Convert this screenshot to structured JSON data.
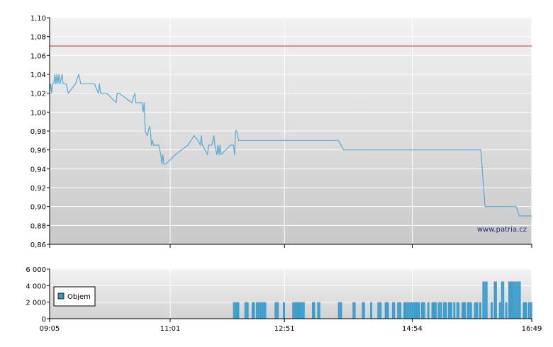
{
  "watermark": "www.patria.cz",
  "colors": {
    "line": "#5aa9d1",
    "bar": "#3a9ccd",
    "reference_line": "#c0392b",
    "grid": "#ffffff",
    "axis": "#000000"
  },
  "chart_data": [
    {
      "type": "line",
      "title": "",
      "xlabel": "",
      "ylabel": "",
      "ylim": [
        0.86,
        1.1
      ],
      "yticks": [
        "1,10",
        "1,08",
        "1,06",
        "1,04",
        "1,02",
        "1,00",
        "0,98",
        "0,96",
        "0,94",
        "0,92",
        "0,90",
        "0,88",
        "0,86"
      ],
      "x_range": [
        "09:05",
        "16:49"
      ],
      "reference_line": {
        "value": 1.07
      },
      "grid": true,
      "series": [
        {
          "name": "",
          "points": [
            [
              "09:05",
              1.02
            ],
            [
              "09:06",
              1.03
            ],
            [
              "09:07",
              1.02
            ],
            [
              "09:08",
              1.03
            ],
            [
              "09:09",
              1.03
            ],
            [
              "09:10",
              1.04
            ],
            [
              "09:11",
              1.03
            ],
            [
              "09:12",
              1.04
            ],
            [
              "09:13",
              1.03
            ],
            [
              "09:14",
              1.04
            ],
            [
              "09:15",
              1.03
            ],
            [
              "09:17",
              1.04
            ],
            [
              "09:18",
              1.03
            ],
            [
              "09:21",
              1.03
            ],
            [
              "09:23",
              1.02
            ],
            [
              "09:30",
              1.03
            ],
            [
              "09:33",
              1.04
            ],
            [
              "09:35",
              1.03
            ],
            [
              "09:48",
              1.03
            ],
            [
              "09:52",
              1.02
            ],
            [
              "09:53",
              1.03
            ],
            [
              "09:54",
              1.02
            ],
            [
              "10:00",
              1.02
            ],
            [
              "10:09",
              1.01
            ],
            [
              "10:10",
              1.02
            ],
            [
              "10:12",
              1.02
            ],
            [
              "10:24",
              1.01
            ],
            [
              "10:27",
              1.02
            ],
            [
              "10:28",
              1.01
            ],
            [
              "10:34",
              1.01
            ],
            [
              "10:35",
              1.0
            ],
            [
              "10:36",
              1.01
            ],
            [
              "10:37",
              0.98
            ],
            [
              "10:39",
              0.975
            ],
            [
              "10:41",
              0.985
            ],
            [
              "10:42",
              0.98
            ],
            [
              "10:43",
              0.965
            ],
            [
              "10:44",
              0.97
            ],
            [
              "10:45",
              0.965
            ],
            [
              "10:50",
              0.965
            ],
            [
              "10:52",
              0.955
            ],
            [
              "10:53",
              0.945
            ],
            [
              "10:54",
              0.955
            ],
            [
              "10:55",
              0.945
            ],
            [
              "10:57",
              0.945
            ],
            [
              "11:06",
              0.955
            ],
            [
              "11:18",
              0.965
            ],
            [
              "11:24",
              0.975
            ],
            [
              "11:28",
              0.97
            ],
            [
              "11:30",
              0.965
            ],
            [
              "11:31",
              0.975
            ],
            [
              "11:32",
              0.965
            ],
            [
              "11:37",
              0.955
            ],
            [
              "11:38",
              0.965
            ],
            [
              "11:41",
              0.965
            ],
            [
              "11:43",
              0.975
            ],
            [
              "11:44",
              0.965
            ],
            [
              "11:46",
              0.955
            ],
            [
              "11:47",
              0.965
            ],
            [
              "11:48",
              0.955
            ],
            [
              "11:49",
              0.965
            ],
            [
              "11:50",
              0.955
            ],
            [
              "11:59",
              0.965
            ],
            [
              "12:02",
              0.965
            ],
            [
              "12:03",
              0.955
            ],
            [
              "12:04",
              0.98
            ],
            [
              "12:05",
              0.98
            ],
            [
              "12:07",
              0.97
            ],
            [
              "13:43",
              0.97
            ],
            [
              "13:48",
              0.96
            ],
            [
              "16:00",
              0.96
            ],
            [
              "16:02",
              0.93
            ],
            [
              "16:04",
              0.9
            ],
            [
              "16:34",
              0.9
            ],
            [
              "16:37",
              0.89
            ],
            [
              "16:49",
              0.89
            ]
          ]
        }
      ]
    },
    {
      "type": "bar",
      "title": "",
      "xlabel": "",
      "ylabel": "",
      "ylim": [
        0,
        6000
      ],
      "yticks": [
        "6 000",
        "4 000",
        "2 000",
        "0"
      ],
      "xticks": [
        "09:05",
        "11:01",
        "12:51",
        "14:54",
        "16:49"
      ],
      "legend": {
        "position": "left",
        "label": "Objem"
      },
      "grid": true,
      "series": [
        {
          "name": "Objem",
          "points": [
            [
              "12:02",
              2000
            ],
            [
              "12:03",
              2000
            ],
            [
              "12:04",
              2000
            ],
            [
              "12:05",
              2000
            ],
            [
              "12:06",
              2000
            ],
            [
              "12:07",
              2000
            ],
            [
              "12:13",
              2000
            ],
            [
              "12:14",
              2000
            ],
            [
              "12:15",
              2000
            ],
            [
              "12:16",
              2000
            ],
            [
              "12:20",
              2000
            ],
            [
              "12:21",
              2000
            ],
            [
              "12:22",
              2000
            ],
            [
              "12:24",
              2000
            ],
            [
              "12:25",
              2000
            ],
            [
              "12:26",
              2000
            ],
            [
              "12:27",
              2000
            ],
            [
              "12:28",
              2000
            ],
            [
              "12:29",
              2000
            ],
            [
              "12:30",
              2000
            ],
            [
              "12:31",
              2000
            ],
            [
              "12:32",
              2000
            ],
            [
              "12:33",
              2000
            ],
            [
              "12:42",
              2000
            ],
            [
              "12:43",
              2000
            ],
            [
              "12:44",
              2000
            ],
            [
              "12:45",
              2000
            ],
            [
              "12:50",
              2000
            ],
            [
              "12:51",
              2000
            ],
            [
              "12:59",
              2000
            ],
            [
              "13:00",
              2000
            ],
            [
              "13:01",
              2000
            ],
            [
              "13:02",
              2000
            ],
            [
              "13:03",
              2000
            ],
            [
              "13:04",
              2000
            ],
            [
              "13:05",
              2000
            ],
            [
              "13:06",
              2000
            ],
            [
              "13:07",
              2000
            ],
            [
              "13:08",
              2000
            ],
            [
              "13:09",
              2000
            ],
            [
              "13:10",
              2000
            ],
            [
              "13:18",
              2000
            ],
            [
              "13:19",
              2000
            ],
            [
              "13:20",
              2000
            ],
            [
              "13:23",
              2000
            ],
            [
              "13:24",
              2000
            ],
            [
              "13:25",
              2000
            ],
            [
              "13:43",
              2000
            ],
            [
              "13:44",
              2000
            ],
            [
              "13:45",
              2000
            ],
            [
              "13:46",
              2000
            ],
            [
              "13:57",
              2000
            ],
            [
              "13:58",
              2000
            ],
            [
              "13:59",
              2000
            ],
            [
              "14:06",
              2000
            ],
            [
              "14:07",
              2000
            ],
            [
              "14:08",
              2000
            ],
            [
              "14:14",
              2000
            ],
            [
              "14:15",
              2000
            ],
            [
              "14:21",
              2000
            ],
            [
              "14:22",
              2000
            ],
            [
              "14:23",
              2000
            ],
            [
              "14:24",
              2000
            ],
            [
              "14:28",
              2000
            ],
            [
              "14:29",
              2000
            ],
            [
              "14:30",
              2000
            ],
            [
              "14:31",
              2000
            ],
            [
              "14:35",
              2000
            ],
            [
              "14:36",
              2000
            ],
            [
              "14:37",
              2000
            ],
            [
              "14:40",
              2000
            ],
            [
              "14:41",
              2000
            ],
            [
              "14:42",
              2000
            ],
            [
              "14:43",
              2000
            ],
            [
              "14:46",
              2000
            ],
            [
              "14:47",
              2000
            ],
            [
              "14:48",
              2000
            ],
            [
              "14:49",
              2000
            ],
            [
              "14:50",
              2000
            ],
            [
              "14:51",
              2000
            ],
            [
              "14:52",
              2000
            ],
            [
              "14:53",
              2000
            ],
            [
              "14:54",
              2000
            ],
            [
              "14:55",
              2000
            ],
            [
              "14:56",
              2000
            ],
            [
              "14:57",
              2000
            ],
            [
              "14:58",
              2000
            ],
            [
              "14:59",
              2000
            ],
            [
              "15:00",
              2000
            ],
            [
              "15:01",
              2000
            ],
            [
              "15:03",
              2000
            ],
            [
              "15:04",
              2000
            ],
            [
              "15:05",
              2000
            ],
            [
              "15:06",
              2000
            ],
            [
              "15:09",
              2000
            ],
            [
              "15:10",
              2000
            ],
            [
              "15:13",
              2000
            ],
            [
              "15:14",
              2000
            ],
            [
              "15:15",
              2000
            ],
            [
              "15:16",
              2000
            ],
            [
              "15:17",
              2000
            ],
            [
              "15:19",
              2000
            ],
            [
              "15:20",
              2000
            ],
            [
              "15:21",
              2000
            ],
            [
              "15:22",
              2000
            ],
            [
              "15:24",
              2000
            ],
            [
              "15:25",
              2000
            ],
            [
              "15:26",
              2000
            ],
            [
              "15:27",
              2000
            ],
            [
              "15:29",
              2000
            ],
            [
              "15:30",
              2000
            ],
            [
              "15:31",
              2000
            ],
            [
              "15:32",
              2000
            ],
            [
              "15:34",
              2000
            ],
            [
              "15:35",
              2000
            ],
            [
              "15:37",
              2000
            ],
            [
              "15:38",
              2000
            ],
            [
              "15:39",
              2000
            ],
            [
              "15:42",
              2000
            ],
            [
              "15:43",
              2000
            ],
            [
              "15:44",
              2000
            ],
            [
              "15:45",
              2000
            ],
            [
              "15:47",
              2000
            ],
            [
              "15:48",
              2000
            ],
            [
              "15:49",
              2000
            ],
            [
              "15:50",
              2000
            ],
            [
              "15:51",
              2000
            ],
            [
              "15:54",
              2000
            ],
            [
              "15:55",
              2000
            ],
            [
              "15:56",
              2000
            ],
            [
              "15:57",
              2000
            ],
            [
              "15:59",
              2000
            ],
            [
              "16:00",
              2000
            ],
            [
              "16:02",
              4500
            ],
            [
              "16:03",
              4500
            ],
            [
              "16:04",
              4500
            ],
            [
              "16:05",
              4500
            ],
            [
              "16:06",
              4500
            ],
            [
              "16:10",
              2000
            ],
            [
              "16:11",
              2000
            ],
            [
              "16:13",
              4500
            ],
            [
              "16:14",
              4500
            ],
            [
              "16:15",
              4500
            ],
            [
              "16:18",
              2000
            ],
            [
              "16:19",
              2000
            ],
            [
              "16:20",
              4500
            ],
            [
              "16:21",
              4500
            ],
            [
              "16:22",
              4500
            ],
            [
              "16:24",
              2000
            ],
            [
              "16:25",
              2000
            ],
            [
              "16:27",
              4500
            ],
            [
              "16:28",
              4500
            ],
            [
              "16:29",
              4500
            ],
            [
              "16:30",
              4500
            ],
            [
              "16:31",
              4500
            ],
            [
              "16:32",
              4500
            ],
            [
              "16:33",
              4500
            ],
            [
              "16:34",
              4500
            ],
            [
              "16:35",
              4500
            ],
            [
              "16:36",
              4500
            ],
            [
              "16:37",
              4500
            ],
            [
              "16:38",
              4500
            ],
            [
              "16:41",
              2000
            ],
            [
              "16:42",
              2000
            ],
            [
              "16:43",
              2000
            ],
            [
              "16:44",
              2000
            ],
            [
              "16:46",
              2000
            ],
            [
              "16:47",
              2000
            ],
            [
              "16:48",
              2000
            ],
            [
              "16:49",
              2000
            ]
          ]
        }
      ]
    }
  ]
}
